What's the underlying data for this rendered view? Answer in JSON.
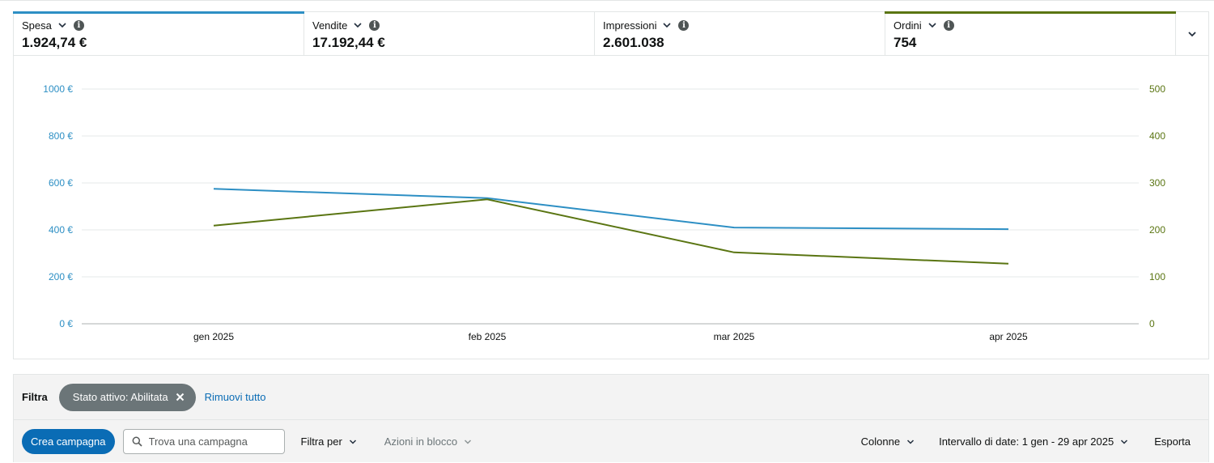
{
  "metrics": [
    {
      "label": "Spesa",
      "value": "1.924,74 €",
      "accent": "#2d8fc4"
    },
    {
      "label": "Vendite",
      "value": "17.192,44 €",
      "accent": ""
    },
    {
      "label": "Impressioni",
      "value": "2.601.038",
      "accent": ""
    },
    {
      "label": "Ordini",
      "value": "754",
      "accent": "#5a7512"
    }
  ],
  "icons": {
    "metric_dropdown": "chevron-down-icon",
    "metric_info": "info-icon",
    "expand": "chevron-down-icon",
    "chip_remove": "close-icon",
    "search": "search-icon"
  },
  "chart_data": {
    "type": "line",
    "categories": [
      "gen 2025",
      "feb 2025",
      "mar 2025",
      "apr 2025"
    ],
    "series": [
      {
        "name": "Spesa",
        "axis": "left",
        "color": "#2d8fc4",
        "values": [
          575,
          535,
          410,
          403
        ]
      },
      {
        "name": "Ordini",
        "axis": "right",
        "color": "#5a7512",
        "values": [
          209,
          265,
          152,
          128
        ]
      }
    ],
    "y_left": {
      "ticks": [
        "0 €",
        "200 €",
        "400 €",
        "600 €",
        "800 €",
        "1000 €"
      ],
      "range": [
        0,
        1000
      ],
      "color": "#2d8fc4"
    },
    "y_right": {
      "ticks": [
        "0",
        "100",
        "200",
        "300",
        "400",
        "500"
      ],
      "range": [
        0,
        500
      ],
      "color": "#5a7512"
    },
    "grid": true
  },
  "filter": {
    "label": "Filtra",
    "chip": "Stato attivo: Abilitata",
    "remove_all": "Rimuovi tutto"
  },
  "actions": {
    "create": "Crea campagna",
    "search_placeholder": "Trova una campagna",
    "filter_by": "Filtra per",
    "bulk_actions": "Azioni in blocco",
    "columns": "Colonne",
    "date_range": "Intervallo di date: 1 gen - 29 apr 2025",
    "export": "Esporta"
  }
}
